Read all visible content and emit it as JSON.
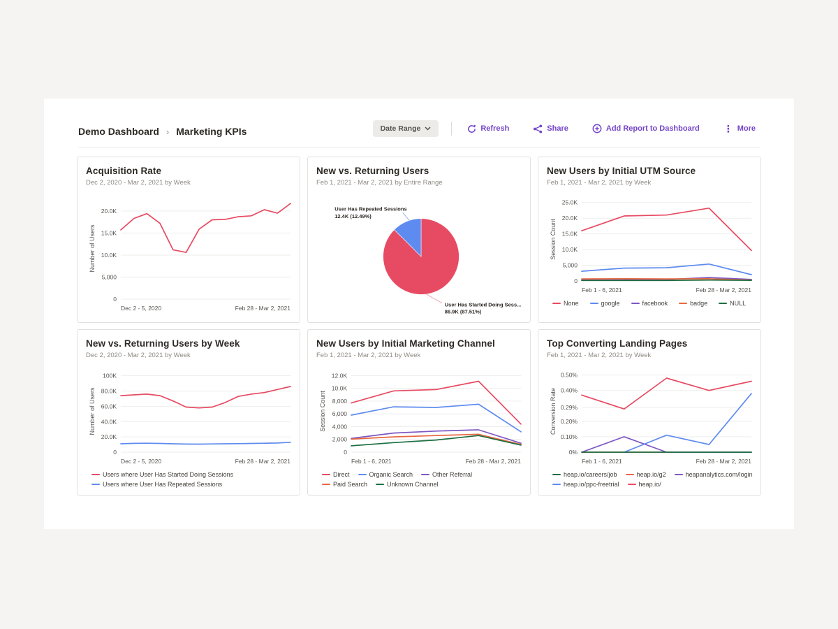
{
  "header": {
    "breadcrumb": {
      "parent": "Demo Dashboard",
      "separator": "›",
      "current": "Marketing KPIs"
    },
    "toolbar": {
      "date_range_label": "Date Range",
      "refresh_label": "Refresh",
      "share_label": "Share",
      "add_report_label": "Add Report to Dashboard",
      "more_label": "More",
      "accent_color": "#7445c9"
    }
  },
  "colors": {
    "red": "#e74b63",
    "blue": "#5e8bf0",
    "purple": "#7e57c2",
    "orange": "#e8683f",
    "green": "#1d6f42",
    "g2_red": "#ee6352",
    "grid_line": "#ededeb",
    "page_bg": "#f5f4f2",
    "card_border": "#e3e1dd"
  },
  "chart_data": [
    {
      "type": "line",
      "title": "Acquisition Rate",
      "subtitle": "Dec 2, 2020 - Mar 2, 2021 by Week",
      "ylabel": "Number of Users",
      "ymax": 23000,
      "grid": true,
      "legend_position": "none",
      "yticks": [
        {
          "v": 0,
          "label": "0"
        },
        {
          "v": 5000,
          "label": "5,000"
        },
        {
          "v": 10000,
          "label": "10.0K"
        },
        {
          "v": 15000,
          "label": "15.0K"
        },
        {
          "v": 20000,
          "label": "20.0K"
        }
      ],
      "xticks": [
        "Dec 2 - 5, 2020",
        "Feb 28 - Mar 2, 2021"
      ],
      "series": [
        {
          "name": "Number of Users",
          "color": "#e74b63",
          "values": [
            15700,
            18300,
            19400,
            17200,
            11200,
            10600,
            15900,
            18000,
            18100,
            18700,
            18900,
            20300,
            19500,
            21700
          ]
        }
      ]
    },
    {
      "type": "pie",
      "title": "New vs. Returning Users",
      "subtitle": "Feb 1, 2021 - Mar 2, 2021 by Entire Range",
      "cx": 160,
      "cy": 94,
      "r": 58,
      "slices": [
        {
          "name": "User Has Started Doing Sessions",
          "value": 87.51,
          "display": "86.9K (87.51%)",
          "color": "#e74b63"
        },
        {
          "name": "User Has Repeated Sessions",
          "value": 12.49,
          "display": "12.4K (12.49%)",
          "color": "#5e8bf0"
        }
      ],
      "annotations": [
        {
          "lines": [
            "User Has Repeated Sessions",
            "12.4K (12.49%)"
          ],
          "x": 28,
          "y": 24,
          "anchor": "start",
          "leader": [
            132,
            27,
            143,
            40
          ],
          "color": "#8fabf0"
        },
        {
          "lines": [
            "User Has Started Doing Sess...",
            "86.9K (87.51%)"
          ],
          "x": 196,
          "y": 170,
          "anchor": "start",
          "leader": [
            167,
            151,
            192,
            165
          ],
          "color": "#f09baa"
        }
      ]
    },
    {
      "type": "line",
      "title": "New Users by Initial UTM Source",
      "subtitle": "Feb 1, 2021 - Mar 2, 2021 by Week",
      "ylabel": "Session Count",
      "ymax": 26500,
      "grid": true,
      "legend_position": "bottom",
      "yticks": [
        {
          "v": 0,
          "label": "0"
        },
        {
          "v": 5000,
          "label": "5,000"
        },
        {
          "v": 10000,
          "label": "10.0K"
        },
        {
          "v": 15000,
          "label": "15.0K"
        },
        {
          "v": 20000,
          "label": "20.0K"
        },
        {
          "v": 25000,
          "label": "25.0K"
        }
      ],
      "xticks": [
        "Feb 1 - 6, 2021",
        "Feb 28 - Mar 2, 2021"
      ],
      "series": [
        {
          "name": "None",
          "color": "#e74b63",
          "values": [
            16000,
            20700,
            21000,
            23200,
            9700
          ]
        },
        {
          "name": "google",
          "color": "#5e8bf0",
          "values": [
            3100,
            4100,
            4200,
            5400,
            2000
          ]
        },
        {
          "name": "facebook",
          "color": "#7e57c2",
          "values": [
            300,
            350,
            450,
            1100,
            500
          ]
        },
        {
          "name": "badge",
          "color": "#e8683f",
          "values": [
            650,
            700,
            650,
            700,
            300
          ]
        },
        {
          "name": "NULL",
          "color": "#1d6f42",
          "values": [
            150,
            150,
            150,
            280,
            200
          ]
        }
      ]
    },
    {
      "type": "line",
      "title": "New vs. Returning Users by Week",
      "subtitle": "Dec 2, 2020 - Mar 2, 2021 by Week",
      "ylabel": "Number of Users",
      "ymax": 107000,
      "grid": true,
      "legend_position": "bottom",
      "yticks": [
        {
          "v": 0,
          "label": "0"
        },
        {
          "v": 20000,
          "label": "20.0K"
        },
        {
          "v": 40000,
          "label": "40.0K"
        },
        {
          "v": 60000,
          "label": "60.0K"
        },
        {
          "v": 80000,
          "label": "80.0K"
        },
        {
          "v": 100000,
          "label": "100K"
        }
      ],
      "xticks": [
        "Dec 2 - 5, 2020",
        "Feb 28 - Mar 2, 2021"
      ],
      "series": [
        {
          "name": "Users where User Has Started Doing Sessions",
          "color": "#e74b63",
          "values": [
            74000,
            75000,
            76000,
            74000,
            67000,
            59000,
            58000,
            59000,
            65000,
            73000,
            76000,
            78000,
            82000,
            86000
          ]
        },
        {
          "name": "Users where User Has Repeated Sessions",
          "color": "#5e8bf0",
          "values": [
            11000,
            11500,
            11700,
            11400,
            11000,
            10600,
            10500,
            10800,
            11000,
            11200,
            11400,
            11700,
            12000,
            13000
          ]
        }
      ]
    },
    {
      "type": "line",
      "title": "New Users by Initial Marketing Channel",
      "subtitle": "Feb 1, 2021 - Mar 2, 2021 by Week",
      "ylabel": "Session Count",
      "ymax": 12800,
      "grid": true,
      "legend_position": "bottom",
      "yticks": [
        {
          "v": 0,
          "label": "0"
        },
        {
          "v": 2000,
          "label": "2,000"
        },
        {
          "v": 4000,
          "label": "4,000"
        },
        {
          "v": 6000,
          "label": "6,000"
        },
        {
          "v": 8000,
          "label": "8,000"
        },
        {
          "v": 10000,
          "label": "10.0K"
        },
        {
          "v": 12000,
          "label": "12.0K"
        }
      ],
      "xticks": [
        "Feb 1 - 6, 2021",
        "Feb 28 - Mar 2, 2021"
      ],
      "series": [
        {
          "name": "Direct",
          "color": "#e74b63",
          "values": [
            7700,
            9600,
            9800,
            11100,
            4400
          ]
        },
        {
          "name": "Organic Search",
          "color": "#5e8bf0",
          "values": [
            5800,
            7100,
            7000,
            7500,
            3200
          ]
        },
        {
          "name": "Other Referral",
          "color": "#7e57c2",
          "values": [
            2150,
            3000,
            3300,
            3500,
            1400
          ]
        },
        {
          "name": "Paid Search",
          "color": "#e8683f",
          "values": [
            2050,
            2400,
            2600,
            2800,
            1200
          ]
        },
        {
          "name": "Unknown Channel",
          "color": "#1d6f42",
          "values": [
            1000,
            1500,
            1900,
            2600,
            1100
          ]
        }
      ]
    },
    {
      "type": "line",
      "title": "Top Converting Landing Pages",
      "subtitle": "Feb 1, 2021 - Mar 2, 2021 by Week",
      "ylabel": "Conversion Rate",
      "ymax": 0.53,
      "grid": true,
      "legend_position": "bottom",
      "draw_order": [
        1,
        2,
        3,
        0,
        4
      ],
      "yticks": [
        {
          "v": 0,
          "label": "0%"
        },
        {
          "v": 0.1,
          "label": "0.10%"
        },
        {
          "v": 0.2,
          "label": "0.20%"
        },
        {
          "v": 0.29,
          "label": "0.29%"
        },
        {
          "v": 0.4,
          "label": "0.40%"
        },
        {
          "v": 0.5,
          "label": "0.50%"
        }
      ],
      "xticks": [
        "Feb 1 - 6, 2021",
        "Feb 28 - Mar 2, 2021"
      ],
      "series": [
        {
          "name": "heap.io/careers/job",
          "color": "#1d6f42",
          "values": [
            0,
            0,
            0,
            0,
            0
          ]
        },
        {
          "name": "heap.io/g2",
          "color": "#ee6352",
          "values": [
            0,
            0,
            0,
            0,
            0
          ]
        },
        {
          "name": "heapanalytics.com/login",
          "color": "#7e57c2",
          "values": [
            0,
            0.1,
            0,
            0,
            0
          ]
        },
        {
          "name": "heap.io/ppc-freetrial",
          "color": "#5e8bf0",
          "values": [
            null,
            0,
            0.11,
            0.05,
            0.38
          ]
        },
        {
          "name": "heap.io/",
          "color": "#e74b63",
          "values": [
            0.37,
            0.28,
            0.48,
            0.4,
            0.46
          ]
        }
      ]
    }
  ]
}
